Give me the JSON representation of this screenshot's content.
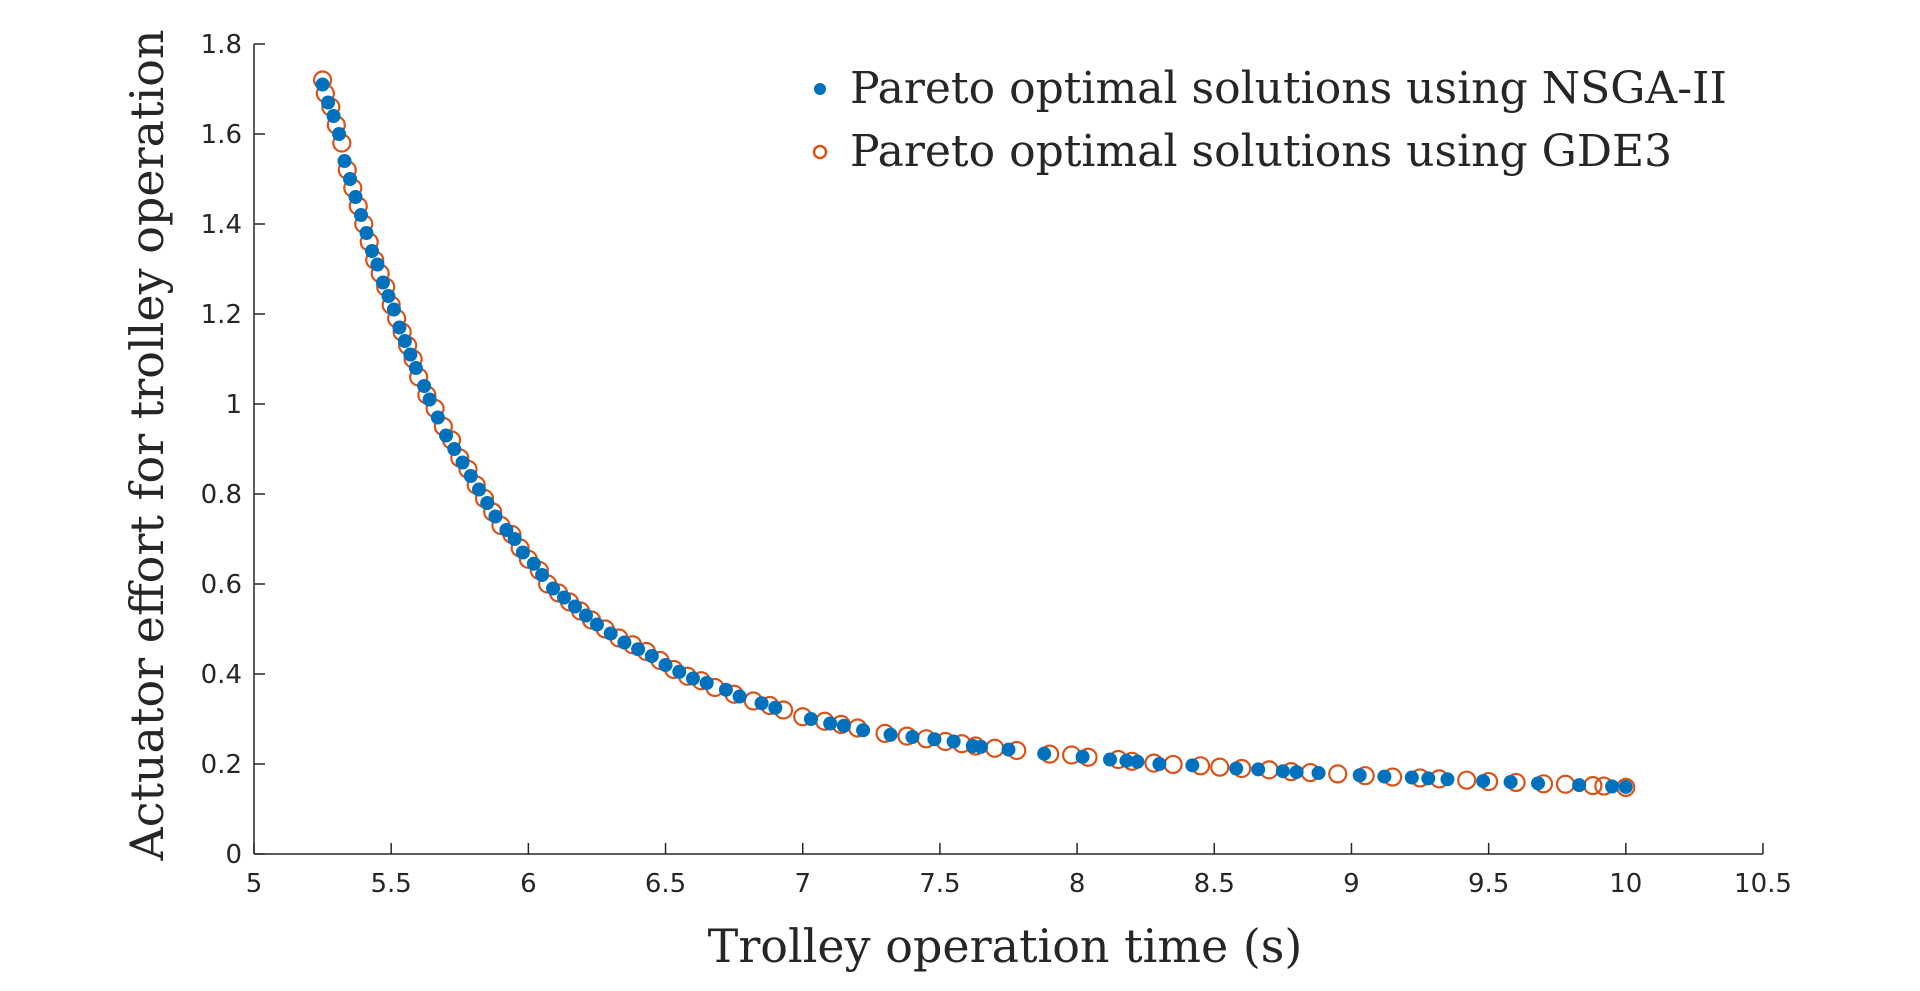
{
  "chart_data": {
    "type": "scatter",
    "xlabel": "Trolley operation time (s)",
    "ylabel": "Actuator effort for trolley operation",
    "xlim": [
      5,
      10.5
    ],
    "ylim": [
      0,
      1.8
    ],
    "xticks": [
      "5",
      "5.5",
      "6",
      "6.5",
      "7",
      "7.5",
      "8",
      "8.5",
      "9",
      "9.5",
      "10",
      "10.5"
    ],
    "yticks": [
      "0",
      "0.2",
      "0.4",
      "0.6",
      "0.8",
      "1",
      "1.2",
      "1.4",
      "1.6",
      "1.8"
    ],
    "legend": {
      "position": "top-right"
    },
    "colors": {
      "nsga": "#0072BD",
      "gde3": "#D95319",
      "axis": "#262626"
    },
    "series": [
      {
        "name": "Pareto optimal solutions using NSGA-II",
        "marker": "filled-dot",
        "points": [
          [
            5.25,
            1.71
          ],
          [
            5.27,
            1.67
          ],
          [
            5.29,
            1.64
          ],
          [
            5.31,
            1.6
          ],
          [
            5.33,
            1.54
          ],
          [
            5.35,
            1.5
          ],
          [
            5.37,
            1.46
          ],
          [
            5.39,
            1.42
          ],
          [
            5.41,
            1.38
          ],
          [
            5.43,
            1.34
          ],
          [
            5.45,
            1.31
          ],
          [
            5.47,
            1.27
          ],
          [
            5.49,
            1.24
          ],
          [
            5.51,
            1.21
          ],
          [
            5.53,
            1.17
          ],
          [
            5.55,
            1.14
          ],
          [
            5.57,
            1.11
          ],
          [
            5.59,
            1.08
          ],
          [
            5.62,
            1.04
          ],
          [
            5.64,
            1.01
          ],
          [
            5.67,
            0.97
          ],
          [
            5.7,
            0.93
          ],
          [
            5.73,
            0.9
          ],
          [
            5.76,
            0.87
          ],
          [
            5.79,
            0.84
          ],
          [
            5.82,
            0.81
          ],
          [
            5.85,
            0.78
          ],
          [
            5.88,
            0.75
          ],
          [
            5.92,
            0.72
          ],
          [
            5.95,
            0.7
          ],
          [
            5.98,
            0.67
          ],
          [
            6.02,
            0.645
          ],
          [
            6.05,
            0.62
          ],
          [
            6.09,
            0.59
          ],
          [
            6.13,
            0.57
          ],
          [
            6.17,
            0.55
          ],
          [
            6.21,
            0.53
          ],
          [
            6.25,
            0.51
          ],
          [
            6.3,
            0.49
          ],
          [
            6.35,
            0.47
          ],
          [
            6.4,
            0.455
          ],
          [
            6.45,
            0.44
          ],
          [
            6.5,
            0.42
          ],
          [
            6.55,
            0.405
          ],
          [
            6.6,
            0.39
          ],
          [
            6.65,
            0.38
          ],
          [
            6.72,
            0.365
          ],
          [
            6.77,
            0.35
          ],
          [
            6.85,
            0.335
          ],
          [
            6.9,
            0.325
          ],
          [
            7.03,
            0.3
          ],
          [
            7.1,
            0.29
          ],
          [
            7.15,
            0.285
          ],
          [
            7.22,
            0.275
          ],
          [
            7.32,
            0.265
          ],
          [
            7.4,
            0.26
          ],
          [
            7.48,
            0.255
          ],
          [
            7.55,
            0.25
          ],
          [
            7.62,
            0.24
          ],
          [
            7.65,
            0.238
          ],
          [
            7.75,
            0.232
          ],
          [
            7.88,
            0.223
          ],
          [
            8.02,
            0.216
          ],
          [
            8.12,
            0.21
          ],
          [
            8.18,
            0.207
          ],
          [
            8.22,
            0.205
          ],
          [
            8.3,
            0.2
          ],
          [
            8.42,
            0.197
          ],
          [
            8.58,
            0.19
          ],
          [
            8.66,
            0.188
          ],
          [
            8.75,
            0.184
          ],
          [
            8.8,
            0.182
          ],
          [
            8.88,
            0.18
          ],
          [
            9.03,
            0.175
          ],
          [
            9.12,
            0.172
          ],
          [
            9.22,
            0.17
          ],
          [
            9.28,
            0.168
          ],
          [
            9.35,
            0.166
          ],
          [
            9.48,
            0.162
          ],
          [
            9.58,
            0.16
          ],
          [
            9.68,
            0.157
          ],
          [
            9.83,
            0.153
          ],
          [
            9.95,
            0.15
          ],
          [
            10.0,
            0.149
          ]
        ]
      },
      {
        "name": "Pareto optimal solutions using GDE3",
        "marker": "open-circle",
        "points": [
          [
            5.25,
            1.72
          ],
          [
            5.26,
            1.69
          ],
          [
            5.28,
            1.66
          ],
          [
            5.3,
            1.62
          ],
          [
            5.32,
            1.58
          ],
          [
            5.34,
            1.52
          ],
          [
            5.36,
            1.48
          ],
          [
            5.38,
            1.44
          ],
          [
            5.4,
            1.4
          ],
          [
            5.42,
            1.36
          ],
          [
            5.44,
            1.32
          ],
          [
            5.46,
            1.29
          ],
          [
            5.48,
            1.26
          ],
          [
            5.5,
            1.22
          ],
          [
            5.52,
            1.19
          ],
          [
            5.54,
            1.16
          ],
          [
            5.56,
            1.13
          ],
          [
            5.58,
            1.1
          ],
          [
            5.6,
            1.06
          ],
          [
            5.63,
            1.02
          ],
          [
            5.66,
            0.99
          ],
          [
            5.69,
            0.95
          ],
          [
            5.72,
            0.92
          ],
          [
            5.75,
            0.88
          ],
          [
            5.78,
            0.855
          ],
          [
            5.81,
            0.82
          ],
          [
            5.84,
            0.79
          ],
          [
            5.87,
            0.76
          ],
          [
            5.9,
            0.73
          ],
          [
            5.94,
            0.71
          ],
          [
            5.97,
            0.68
          ],
          [
            6.0,
            0.655
          ],
          [
            6.04,
            0.63
          ],
          [
            6.07,
            0.6
          ],
          [
            6.11,
            0.58
          ],
          [
            6.15,
            0.56
          ],
          [
            6.19,
            0.54
          ],
          [
            6.23,
            0.52
          ],
          [
            6.28,
            0.5
          ],
          [
            6.33,
            0.48
          ],
          [
            6.38,
            0.465
          ],
          [
            6.43,
            0.45
          ],
          [
            6.48,
            0.43
          ],
          [
            6.53,
            0.41
          ],
          [
            6.58,
            0.395
          ],
          [
            6.63,
            0.385
          ],
          [
            6.68,
            0.37
          ],
          [
            6.75,
            0.355
          ],
          [
            6.82,
            0.34
          ],
          [
            6.88,
            0.33
          ],
          [
            6.93,
            0.32
          ],
          [
            7.0,
            0.305
          ],
          [
            7.08,
            0.295
          ],
          [
            7.14,
            0.288
          ],
          [
            7.2,
            0.28
          ],
          [
            7.3,
            0.268
          ],
          [
            7.38,
            0.262
          ],
          [
            7.45,
            0.256
          ],
          [
            7.52,
            0.25
          ],
          [
            7.58,
            0.245
          ],
          [
            7.63,
            0.24
          ],
          [
            7.7,
            0.235
          ],
          [
            7.78,
            0.23
          ],
          [
            7.9,
            0.222
          ],
          [
            7.98,
            0.22
          ],
          [
            8.04,
            0.215
          ],
          [
            8.15,
            0.21
          ],
          [
            8.2,
            0.206
          ],
          [
            8.28,
            0.202
          ],
          [
            8.35,
            0.199
          ],
          [
            8.45,
            0.196
          ],
          [
            8.52,
            0.193
          ],
          [
            8.6,
            0.19
          ],
          [
            8.7,
            0.187
          ],
          [
            8.78,
            0.183
          ],
          [
            8.85,
            0.181
          ],
          [
            8.95,
            0.178
          ],
          [
            9.05,
            0.174
          ],
          [
            9.15,
            0.171
          ],
          [
            9.25,
            0.169
          ],
          [
            9.32,
            0.167
          ],
          [
            9.42,
            0.164
          ],
          [
            9.5,
            0.161
          ],
          [
            9.6,
            0.159
          ],
          [
            9.7,
            0.156
          ],
          [
            9.78,
            0.155
          ],
          [
            9.88,
            0.152
          ],
          [
            9.92,
            0.151
          ],
          [
            10.0,
            0.148
          ]
        ]
      }
    ]
  }
}
